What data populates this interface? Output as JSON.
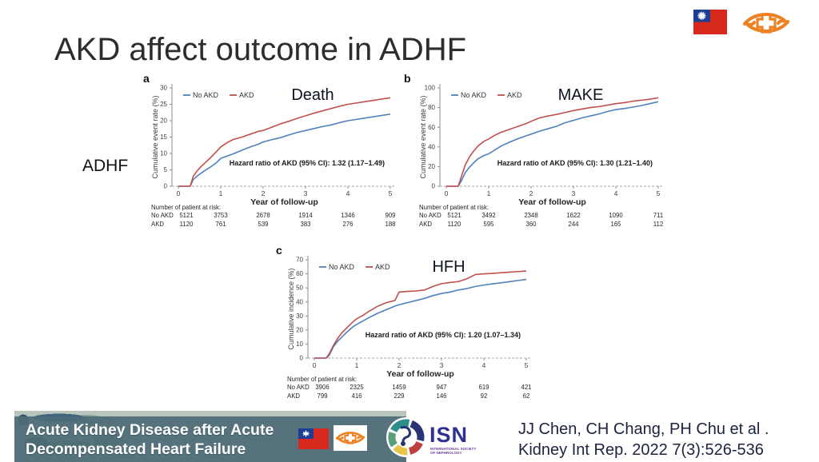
{
  "slide": {
    "title": "AKD affect outcome in ADHF",
    "side_label": "ADHF"
  },
  "colors": {
    "no_akd": "#4f81bd",
    "akd": "#c0504d",
    "banner": "#4d6b77",
    "citation_text": "#1c2340",
    "hospital_orange": "#ee8122",
    "flag_red": "#d7281d",
    "flag_blue": "#1c3f94",
    "isn_blue": "#2e3192"
  },
  "chart_data": [
    {
      "id": "death",
      "type": "line",
      "panel_letter": "a",
      "outcome_label": "Death",
      "ylabel": "Cumulative event rate (%)",
      "xlabel": "Year of follow-up",
      "ylim": [
        0,
        30
      ],
      "yticks": [
        0,
        5,
        10,
        15,
        20,
        25,
        30
      ],
      "xticks": [
        0,
        1,
        2,
        3,
        4,
        5
      ],
      "hazard_text": "Hazard ratio of AKD (95% CI): 1.32 (1.17–1.49)",
      "legend": [
        "No AKD",
        "AKD"
      ],
      "x": [
        0,
        0.28,
        0.35,
        0.45,
        0.55,
        0.65,
        0.75,
        0.9,
        1,
        1.15,
        1.3,
        1.5,
        1.7,
        1.9,
        2,
        2.2,
        2.4,
        2.6,
        2.8,
        3,
        3.2,
        3.4,
        3.6,
        3.8,
        4,
        4.2,
        4.4,
        4.6,
        4.8,
        5
      ],
      "series": [
        {
          "name": "No AKD",
          "color": "#4f81bd",
          "values": [
            0,
            0,
            2,
            3.2,
            4.1,
            5,
            5.8,
            7.2,
            8.5,
            9.2,
            9.9,
            11,
            12,
            12.9,
            13.5,
            14.2,
            14.8,
            15.6,
            16.4,
            17,
            17.6,
            18.2,
            18.7,
            19.4,
            20,
            20.4,
            20.8,
            21.2,
            21.6,
            22
          ]
        },
        {
          "name": "AKD",
          "color": "#c0504d",
          "values": [
            0,
            0,
            3,
            4.8,
            6.2,
            7.4,
            8.6,
            10.6,
            12,
            13.3,
            14.3,
            15,
            15.9,
            16.8,
            17,
            18,
            19,
            19.8,
            20.7,
            21.5,
            22.3,
            23,
            23.7,
            24.4,
            25,
            25.4,
            25.8,
            26.2,
            26.6,
            27
          ]
        }
      ],
      "at_risk": {
        "label": "Number of patient at risk:",
        "rows": [
          {
            "name": "No AKD",
            "values": [
              "5121",
              "3753",
              "2678",
              "1914",
              "1346",
              "909"
            ]
          },
          {
            "name": "AKD",
            "values": [
              "1120",
              "761",
              "539",
              "383",
              "276",
              "188"
            ]
          }
        ]
      }
    },
    {
      "id": "make",
      "type": "line",
      "panel_letter": "b",
      "outcome_label": "MAKE",
      "ylabel": "Cumulative event rate (%)",
      "xlabel": "Year of follow-up",
      "ylim": [
        0,
        100
      ],
      "yticks": [
        0,
        20,
        40,
        60,
        80,
        100
      ],
      "xticks": [
        0,
        1,
        2,
        3,
        4,
        5
      ],
      "hazard_text": "Hazard ratio of AKD (95% CI): 1.30 (1.21–1.40)",
      "legend": [
        "No AKD",
        "AKD"
      ],
      "x": [
        0,
        0.28,
        0.35,
        0.45,
        0.55,
        0.65,
        0.75,
        0.9,
        1,
        1.15,
        1.3,
        1.5,
        1.7,
        1.9,
        2,
        2.2,
        2.4,
        2.6,
        2.8,
        3,
        3.2,
        3.4,
        3.6,
        3.8,
        4,
        4.2,
        4.4,
        4.6,
        4.8,
        5
      ],
      "series": [
        {
          "name": "No AKD",
          "color": "#4f81bd",
          "values": [
            0,
            0,
            5,
            14,
            19.5,
            24,
            28,
            31.5,
            33,
            37,
            41,
            45,
            48.5,
            51.5,
            53,
            56,
            58.5,
            61,
            64.5,
            67,
            69.5,
            71.5,
            73.5,
            76,
            78,
            79,
            80.5,
            82,
            84,
            86
          ]
        },
        {
          "name": "AKD",
          "color": "#c0504d",
          "values": [
            0,
            0,
            9,
            22,
            30,
            36,
            41,
            46,
            48,
            52,
            55,
            58,
            61,
            64,
            66,
            69.5,
            71.5,
            73,
            75,
            77,
            78.5,
            80,
            81,
            82.5,
            84,
            85,
            86.5,
            87.5,
            88.5,
            90
          ]
        }
      ],
      "at_risk": {
        "label": "Number of patient at risk:",
        "rows": [
          {
            "name": "No AKD",
            "values": [
              "5121",
              "3492",
              "2348",
              "1622",
              "1090",
              "711"
            ]
          },
          {
            "name": "AKD",
            "values": [
              "1120",
              "595",
              "360",
              "244",
              "165",
              "112"
            ]
          }
        ]
      }
    },
    {
      "id": "hfh",
      "type": "line",
      "panel_letter": "c",
      "outcome_label": "HFH",
      "ylabel": "Cumulative incidence (%)",
      "xlabel": "Year of follow-up",
      "ylim": [
        0,
        70
      ],
      "yticks": [
        0,
        10,
        20,
        30,
        40,
        50,
        60,
        70
      ],
      "xticks": [
        0,
        1,
        2,
        3,
        4,
        5
      ],
      "hazard_text": "Hazard ratio of AKD (95% CI): 1.20 (1.07–1.34)",
      "legend": [
        "No AKD",
        "AKD"
      ],
      "x": [
        0,
        0.28,
        0.35,
        0.45,
        0.55,
        0.65,
        0.75,
        0.9,
        1,
        1.15,
        1.3,
        1.5,
        1.7,
        1.9,
        2,
        2.2,
        2.4,
        2.6,
        2.8,
        3,
        3.2,
        3.4,
        3.6,
        3.8,
        4,
        4.2,
        4.4,
        4.6,
        4.8,
        5
      ],
      "series": [
        {
          "name": "No AKD",
          "color": "#4f81bd",
          "values": [
            0,
            0,
            2,
            8,
            12,
            15,
            18,
            22,
            24,
            26.5,
            29,
            32,
            34.5,
            37,
            38,
            39.5,
            41,
            42.5,
            44.5,
            46,
            47,
            48.5,
            49.5,
            51,
            52,
            52.8,
            53.6,
            54.4,
            55.2,
            56
          ]
        },
        {
          "name": "AKD",
          "color": "#c0504d",
          "values": [
            0,
            0,
            3,
            9,
            14,
            18,
            21,
            25.5,
            28,
            30.5,
            33.5,
            37,
            39.5,
            41,
            47,
            47.5,
            47.8,
            48.5,
            51,
            53,
            53.8,
            54.5,
            56.5,
            59.5,
            60,
            60.3,
            60.8,
            61.2,
            61.6,
            62
          ]
        }
      ],
      "at_risk": {
        "label": "Number of patient at risk:",
        "rows": [
          {
            "name": "No AKD",
            "values": [
              "3906",
              "2325",
              "1459",
              "947",
              "619",
              "421"
            ]
          },
          {
            "name": "AKD",
            "values": [
              "799",
              "416",
              "229",
              "146",
              "92",
              "62"
            ]
          }
        ]
      }
    }
  ],
  "footer": {
    "banner_line1": "Acute Kidney Disease after Acute",
    "banner_line2": "Decompensated Heart Failure",
    "isn": {
      "abbr": "ISN",
      "caption_line1": "INTERNATIONAL SOCIETY",
      "caption_line2": "OF NEPHROLOGY"
    },
    "citation_line1": "JJ Chen, CH Chang, PH Chu et al .",
    "citation_line2": "Kidney Int Rep. 2022 7(3):526-536"
  }
}
